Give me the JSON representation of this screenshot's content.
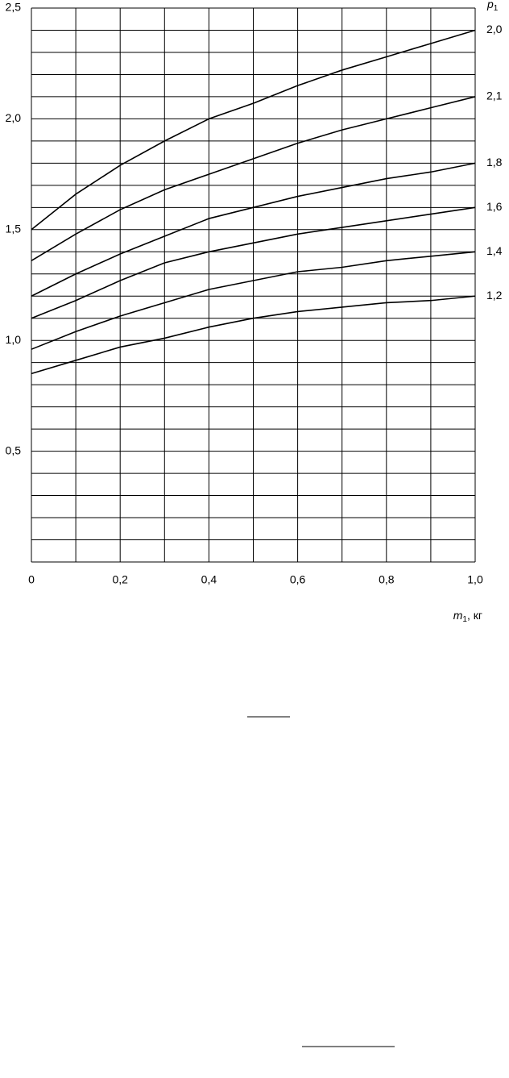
{
  "chart_data": {
    "type": "line",
    "x": [
      0,
      0.1,
      0.2,
      0.3,
      0.4,
      0.5,
      0.6,
      0.7,
      0.8,
      0.9,
      1.0
    ],
    "series": [
      {
        "name": "2,0",
        "color": "#000000",
        "values": [
          1.5,
          1.66,
          1.79,
          1.9,
          2.0,
          2.07,
          2.15,
          2.22,
          2.28,
          2.34,
          2.4
        ]
      },
      {
        "name": "2,1",
        "color": "#000000",
        "values": [
          1.36,
          1.48,
          1.59,
          1.68,
          1.75,
          1.82,
          1.89,
          1.95,
          2.0,
          2.05,
          2.1
        ]
      },
      {
        "name": "1,8",
        "color": "#000000",
        "values": [
          1.2,
          1.3,
          1.39,
          1.47,
          1.55,
          1.6,
          1.65,
          1.69,
          1.73,
          1.76,
          1.8
        ]
      },
      {
        "name": "1,6",
        "color": "#000000",
        "values": [
          1.1,
          1.18,
          1.27,
          1.35,
          1.4,
          1.44,
          1.48,
          1.51,
          1.54,
          1.57,
          1.6
        ]
      },
      {
        "name": "1,4",
        "color": "#000000",
        "values": [
          0.96,
          1.04,
          1.11,
          1.17,
          1.23,
          1.27,
          1.31,
          1.33,
          1.36,
          1.38,
          1.4
        ]
      },
      {
        "name": "1,2",
        "color": "#000000",
        "values": [
          0.85,
          0.91,
          0.97,
          1.01,
          1.06,
          1.1,
          1.13,
          1.15,
          1.17,
          1.18,
          1.2
        ]
      }
    ],
    "xlim": [
      0,
      1.0
    ],
    "ylim": [
      0,
      2.5
    ],
    "xticks": [
      0,
      {
        "value": 0.2,
        "label": "0,2"
      },
      {
        "value": 0.4,
        "label": "0,4"
      },
      {
        "value": 0.6,
        "label": "0,6"
      },
      {
        "value": 0.8,
        "label": "0,8"
      },
      {
        "value": 1.0,
        "label": "1,0"
      }
    ],
    "yticks": [
      {
        "value": 0.5,
        "label": "0,5"
      },
      {
        "value": 1.0,
        "label": "1,0"
      },
      {
        "value": 1.5,
        "label": "1,5"
      },
      {
        "value": 2.0,
        "label": "2,0"
      },
      {
        "value": 2.5,
        "label": "2,5"
      }
    ],
    "xgrid": [
      0,
      0.1,
      0.2,
      0.3,
      0.4,
      0.5,
      0.6,
      0.7,
      0.8,
      0.9,
      1.0
    ],
    "ygrid": [
      0,
      0.1,
      0.2,
      0.3,
      0.4,
      0.5,
      0.6,
      0.7,
      0.8,
      0.9,
      1.0,
      1.1,
      1.2,
      1.3,
      1.4,
      1.5,
      1.6,
      1.7,
      1.8,
      1.9,
      2.0,
      2.1,
      2.2,
      2.3,
      2.4,
      2.5
    ],
    "x_label": [
      "m",
      "1",
      ", кг"
    ],
    "series_label": [
      "p",
      "1"
    ]
  }
}
